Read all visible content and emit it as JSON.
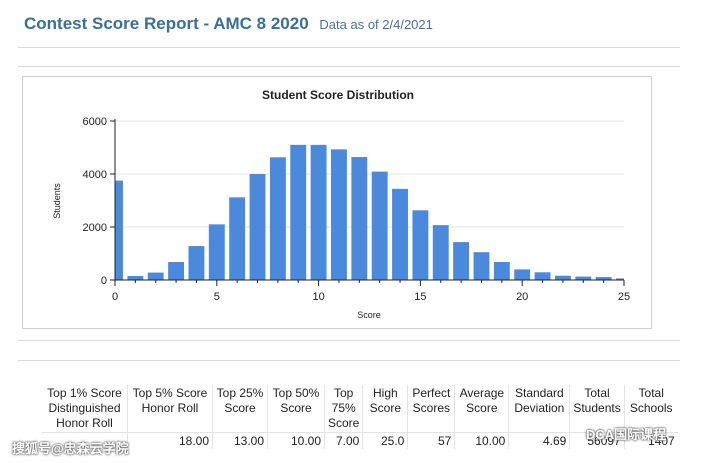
{
  "header": {
    "title": "Contest Score Report - AMC 8 2020",
    "date_note": "Data as of 2/4/2021"
  },
  "chart_data": {
    "type": "bar",
    "title": "Student Score Distribution",
    "xlabel": "Score",
    "ylabel": "Students",
    "x": [
      0,
      1,
      2,
      3,
      4,
      5,
      6,
      7,
      8,
      9,
      10,
      11,
      12,
      13,
      14,
      15,
      16,
      17,
      18,
      19,
      20,
      21,
      22,
      23,
      24,
      25
    ],
    "values": [
      3750,
      150,
      280,
      680,
      1280,
      2100,
      3120,
      4000,
      4630,
      5100,
      5100,
      4930,
      4640,
      4090,
      3440,
      2630,
      2070,
      1430,
      1050,
      680,
      400,
      290,
      160,
      130,
      110,
      60
    ],
    "xlim": [
      0,
      25
    ],
    "ylim": [
      0,
      6000
    ],
    "x_ticks": [
      "0",
      "5",
      "10",
      "15",
      "20",
      "25"
    ],
    "y_ticks": [
      "0",
      "2000",
      "4000",
      "6000"
    ],
    "bar_color": "#4a89dc",
    "grid": true
  },
  "table": {
    "headers": [
      "Top 1% Score Distinguished Honor Roll",
      "Top 5% Score Honor Roll",
      "Top 25% Score",
      "Top 50% Score",
      "Top 75% Score",
      "High Score",
      "Perfect Scores",
      "Average Score",
      "Standard Deviation",
      "Total Students",
      "Total Schools"
    ],
    "values": [
      "",
      "18.00",
      "13.00",
      "10.00",
      "7.00",
      "25.0",
      "57",
      "10.00",
      "4.69",
      "56097",
      "1407"
    ]
  },
  "watermarks": {
    "left": "搜狐号@忠森云学院",
    "right": "DCA国际课程"
  }
}
